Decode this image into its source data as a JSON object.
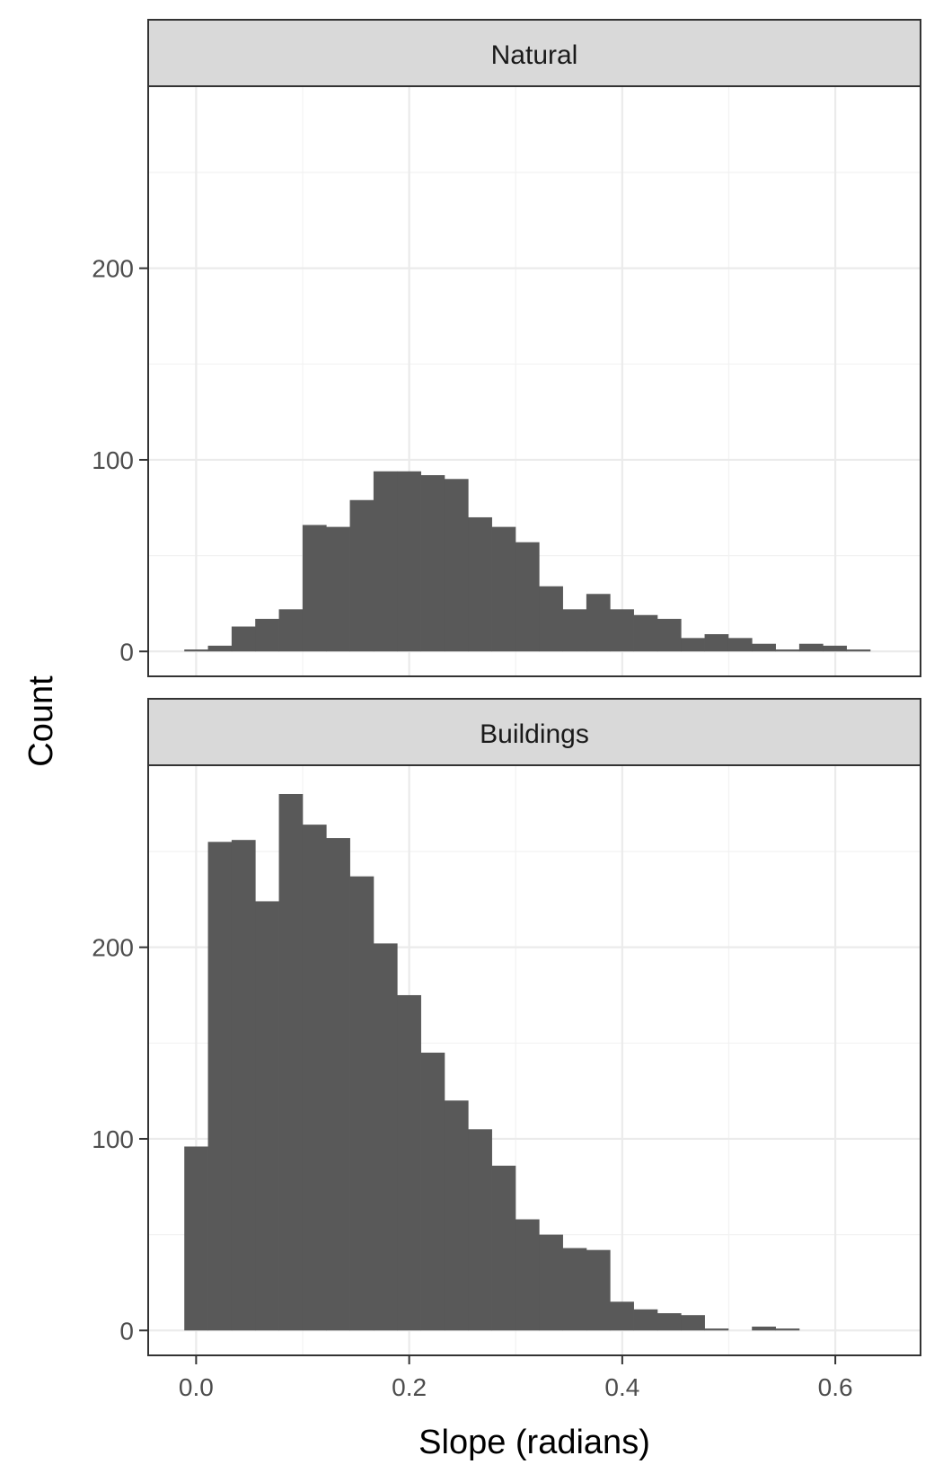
{
  "chart_data": {
    "type": "bar",
    "subtype": "histogram-facets",
    "xlabel": "Slope (radians)",
    "ylabel": "Count",
    "xlim": [
      -0.045,
      0.68
    ],
    "x_ticks": [
      0.0,
      0.2,
      0.4,
      0.6
    ],
    "x_tick_labels": [
      "0.0",
      "0.2",
      "0.4",
      "0.6"
    ],
    "bin_width": 0.0222,
    "bar_color": "#595959",
    "grid": true,
    "panels": [
      {
        "name": "Natural",
        "ylim": [
          -13,
          295
        ],
        "y_ticks": [
          0,
          100,
          200
        ],
        "y_tick_labels": [
          "0",
          "100",
          "200"
        ],
        "bin_starts": [
          -0.0111,
          0.0111,
          0.0333,
          0.0555,
          0.0777,
          0.0999,
          0.1221,
          0.1443,
          0.1665,
          0.1887,
          0.2109,
          0.2331,
          0.2553,
          0.2775,
          0.2997,
          0.3219,
          0.3441,
          0.3663,
          0.3885,
          0.4107,
          0.4329,
          0.4551,
          0.4773,
          0.4995,
          0.5217,
          0.5439,
          0.5661,
          0.5883,
          0.6105
        ],
        "values": [
          1,
          3,
          13,
          17,
          22,
          66,
          65,
          79,
          94,
          94,
          92,
          90,
          70,
          65,
          57,
          34,
          22,
          30,
          22,
          19,
          17,
          7,
          9,
          7,
          4,
          1,
          4,
          3,
          1
        ]
      },
      {
        "name": "Buildings",
        "ylim": [
          -13,
          295
        ],
        "y_ticks": [
          0,
          100,
          200
        ],
        "y_tick_labels": [
          "0",
          "100",
          "200"
        ],
        "bin_starts": [
          -0.0111,
          0.0111,
          0.0333,
          0.0555,
          0.0777,
          0.0999,
          0.1221,
          0.1443,
          0.1665,
          0.1887,
          0.2109,
          0.2331,
          0.2553,
          0.2775,
          0.2997,
          0.3219,
          0.3441,
          0.3663,
          0.3885,
          0.4107,
          0.4329,
          0.4551,
          0.4773,
          0.4995,
          0.5217,
          0.5439,
          0.5661,
          0.5883,
          0.6105
        ],
        "values": [
          96,
          255,
          256,
          224,
          280,
          264,
          257,
          237,
          202,
          175,
          145,
          120,
          105,
          86,
          58,
          50,
          43,
          42,
          15,
          11,
          9,
          8,
          1,
          0,
          2,
          1,
          0,
          0,
          0
        ]
      }
    ]
  }
}
